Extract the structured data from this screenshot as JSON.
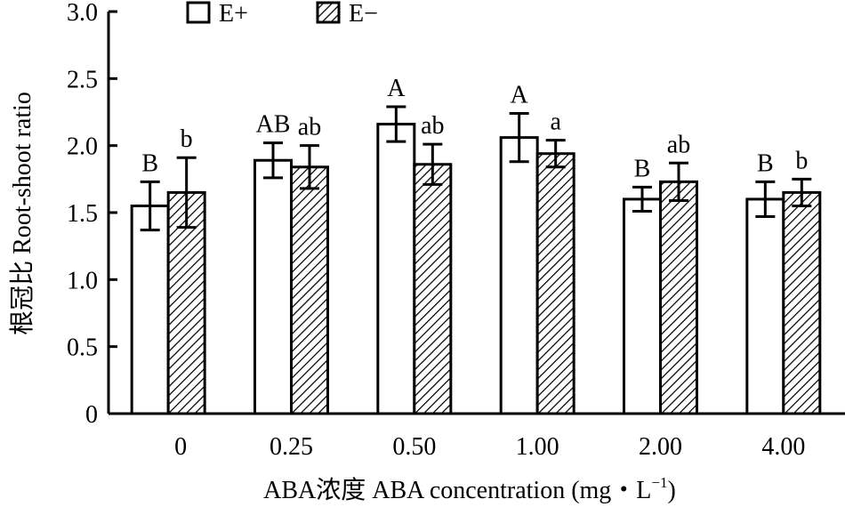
{
  "chart_data": {
    "type": "bar",
    "title": "",
    "xlabel": "ABA浓度 ABA concentration (mg・L⁻¹)",
    "xlabel_main": "ABA浓度 ABA concentration (mg・L",
    "xlabel_sup": "−1",
    "xlabel_end": ")",
    "ylabel": "根冠比 Root-shoot ratio",
    "ylim": [
      0,
      3.0
    ],
    "yticks": [
      "0",
      "0.5",
      "1.0",
      "1.5",
      "2.0",
      "2.5",
      "3.0"
    ],
    "categories": [
      "0",
      "0.25",
      "0.50",
      "1.00",
      "2.00",
      "4.00"
    ],
    "legend_position": "top",
    "series": [
      {
        "name": "E+",
        "fill": "none",
        "values": [
          1.55,
          1.89,
          2.16,
          2.06,
          1.6,
          1.6
        ],
        "errors": [
          0.18,
          0.13,
          0.13,
          0.18,
          0.09,
          0.13
        ],
        "labels": [
          "B",
          "AB",
          "A",
          "A",
          "B",
          "B"
        ]
      },
      {
        "name": "E−",
        "fill": "hatched",
        "values": [
          1.65,
          1.84,
          1.86,
          1.94,
          1.73,
          1.65
        ],
        "errors": [
          0.26,
          0.16,
          0.15,
          0.1,
          0.14,
          0.1
        ],
        "labels": [
          "b",
          "ab",
          "ab",
          "a",
          "ab",
          "b"
        ]
      }
    ]
  }
}
